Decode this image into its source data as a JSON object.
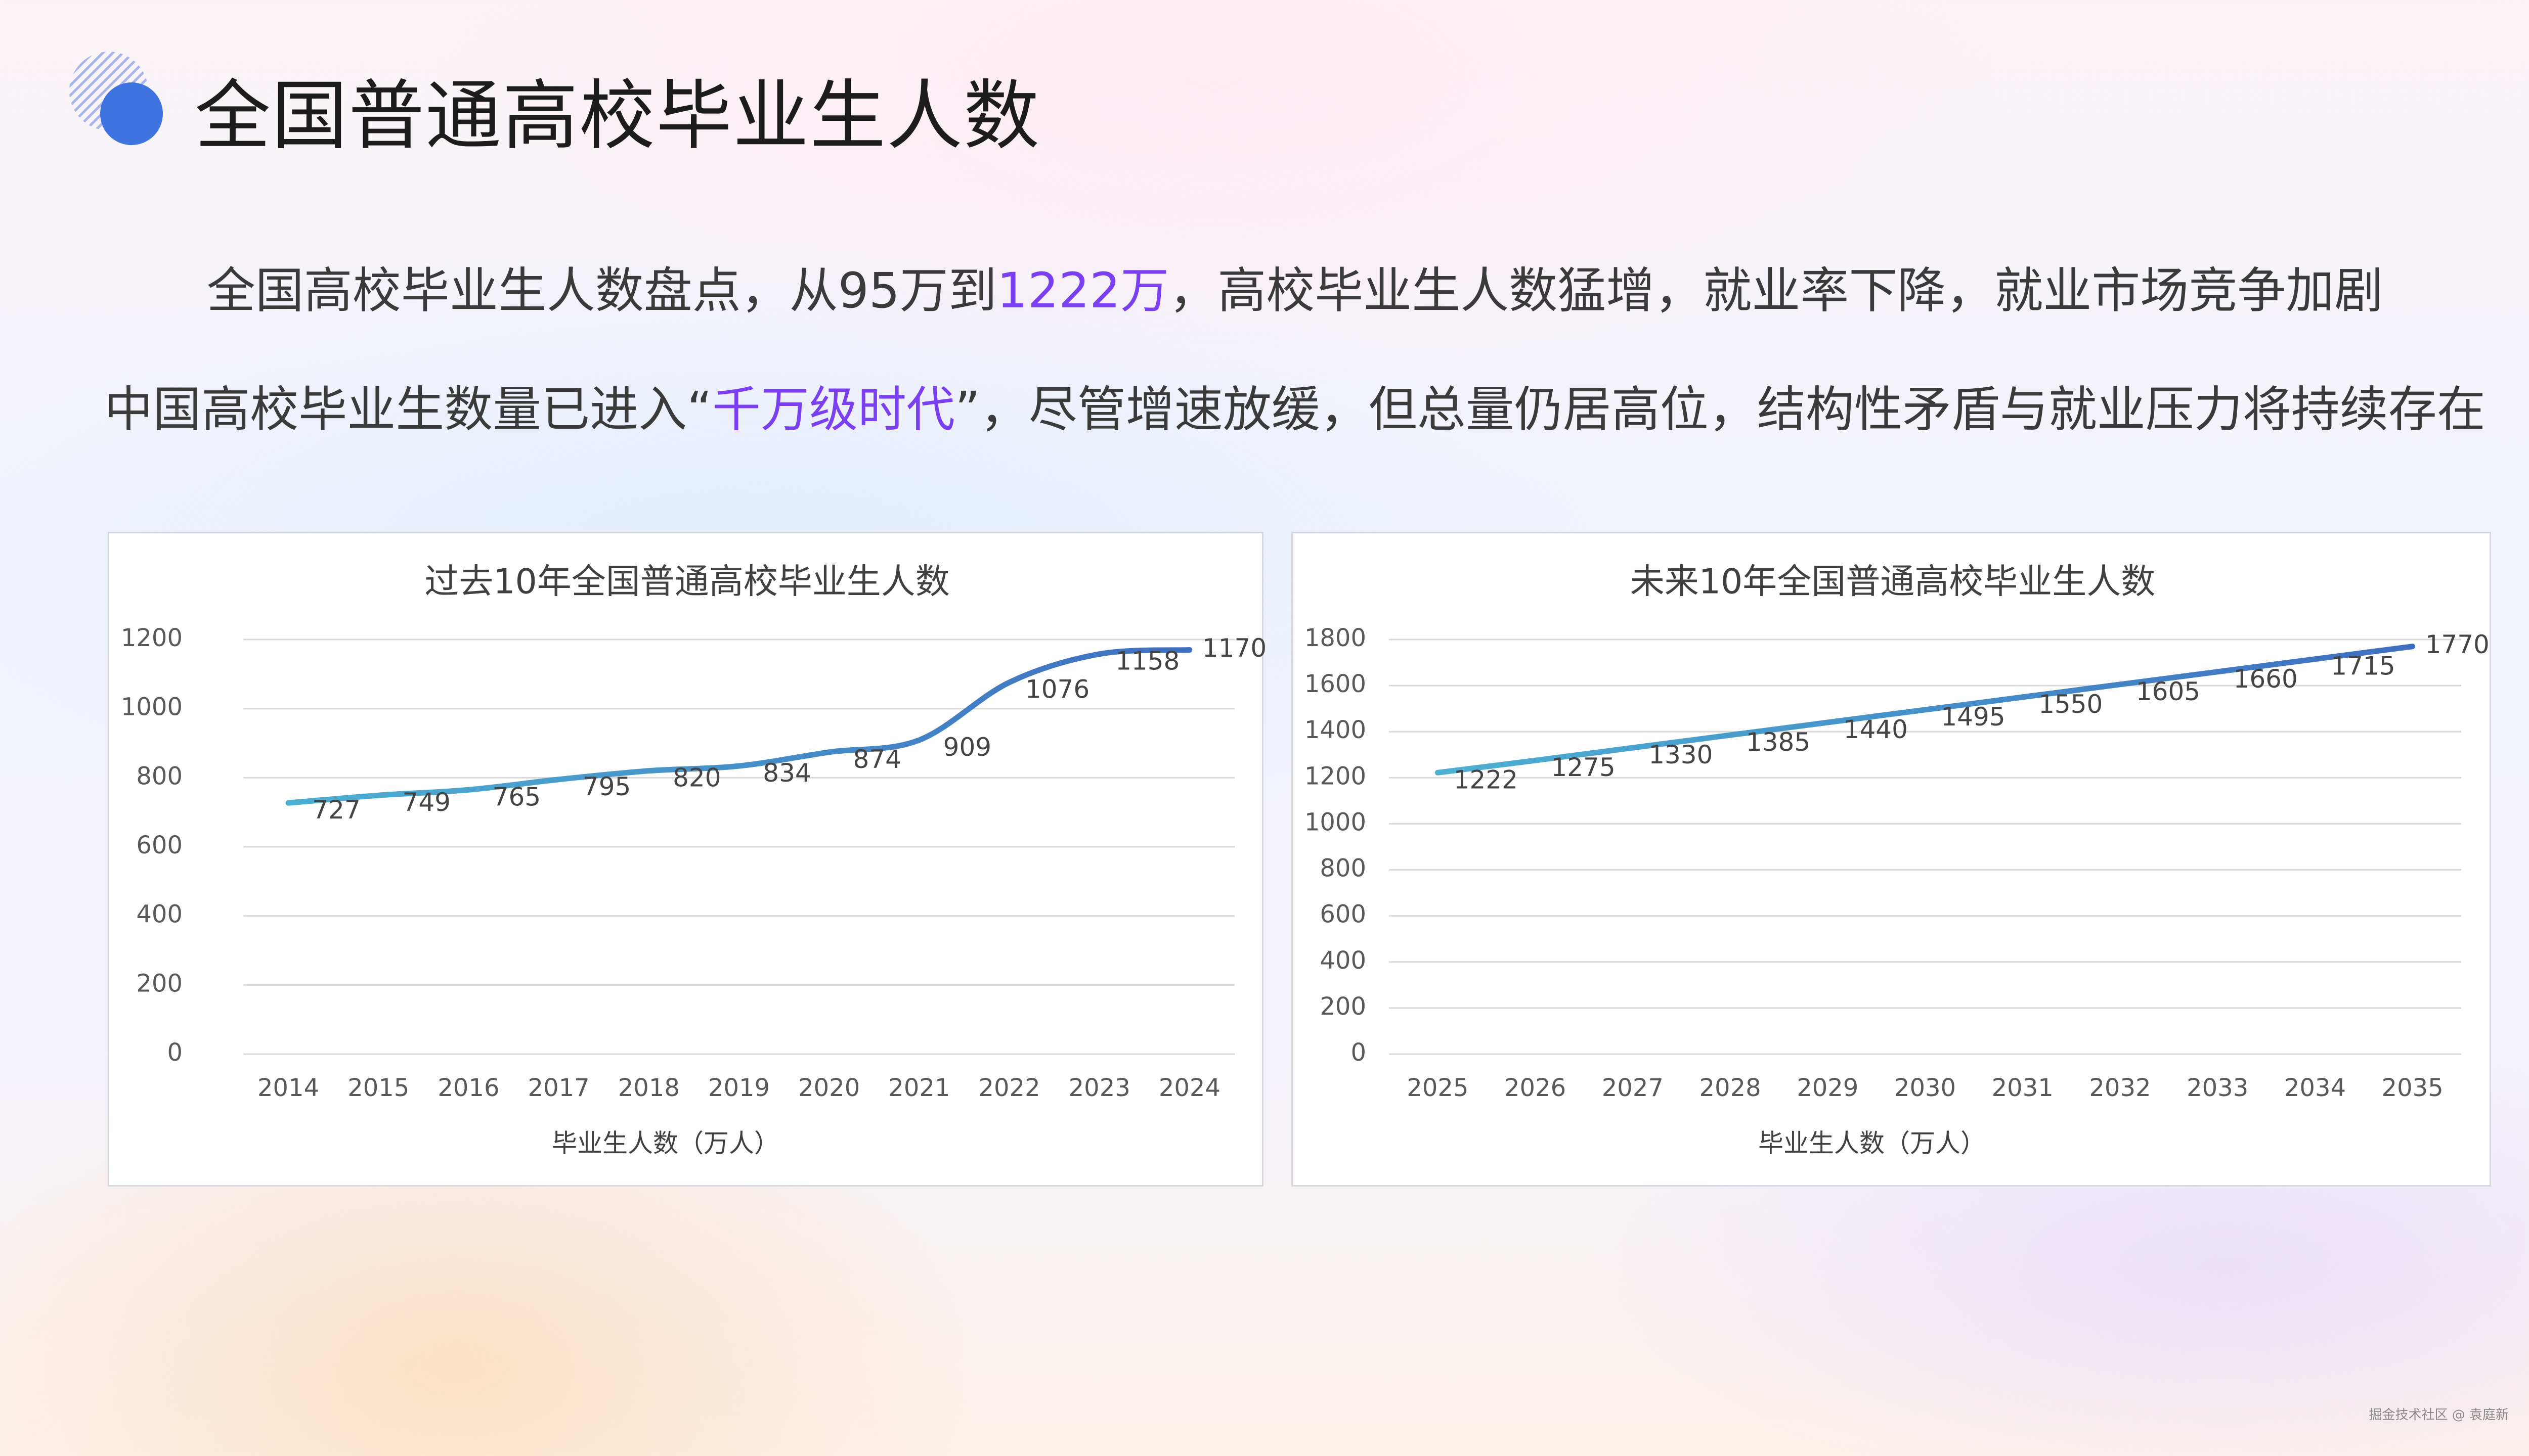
{
  "header": {
    "title": "全国普通高校毕业生人数"
  },
  "subtitle_line1": {
    "before": "全国高校毕业生人数盘点，从95万到",
    "highlight": "1222万",
    "after": "，高校毕业生人数猛增，就业率下降，就业市场竞争加剧"
  },
  "subtitle_line2": {
    "before": "中国高校毕业生数量已进入“",
    "highlight": "千万级时代",
    "after": "”，尽管增速放缓，但总量仍居高位，结构性矛盾与就业压力将持续存在"
  },
  "colors": {
    "accent": "#7b3ff2",
    "deco_blue": "#3f73e0",
    "line_start": "#4db0d2",
    "line_end": "#3f6fc0",
    "axis_text": "#595959",
    "grid": "#d9d9d9"
  },
  "chart_data": [
    {
      "type": "line",
      "title": "过去10年全国普通高校毕业生人数",
      "categories": [
        "2014",
        "2015",
        "2016",
        "2017",
        "2018",
        "2019",
        "2020",
        "2021",
        "2022",
        "2023",
        "2024"
      ],
      "series": [
        {
          "name": "毕业生人数（万人）",
          "values": [
            727,
            749,
            765,
            795,
            820,
            834,
            874,
            909,
            1076,
            1158,
            1170
          ]
        }
      ],
      "ylim": [
        0,
        1200
      ],
      "yticks": [
        0,
        200,
        400,
        600,
        800,
        1000,
        1200
      ],
      "grid": true,
      "smooth": true,
      "legend": "bottom"
    },
    {
      "type": "line",
      "title": "未来10年全国普通高校毕业生人数",
      "categories": [
        "2025",
        "2026",
        "2027",
        "2028",
        "2029",
        "2030",
        "2031",
        "2032",
        "2033",
        "2034",
        "2035"
      ],
      "series": [
        {
          "name": "毕业生人数（万人）",
          "values": [
            1222,
            1275,
            1330,
            1385,
            1440,
            1495,
            1550,
            1605,
            1660,
            1715,
            1770
          ]
        }
      ],
      "ylim": [
        0,
        1800
      ],
      "yticks": [
        0,
        200,
        400,
        600,
        800,
        1000,
        1200,
        1400,
        1600,
        1800
      ],
      "grid": true,
      "smooth": true,
      "legend": "bottom"
    }
  ],
  "footer": {
    "credit": "掘金技术社区 @ 袁庭新"
  }
}
